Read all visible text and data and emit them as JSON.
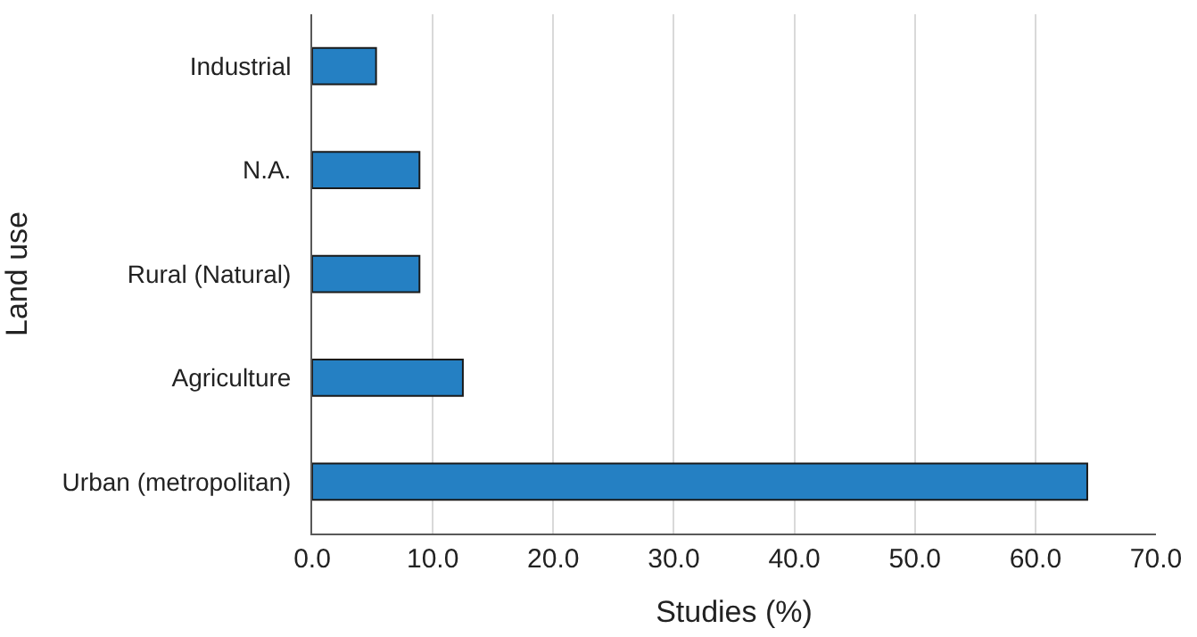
{
  "chart_data": {
    "type": "bar",
    "orientation": "horizontal",
    "xlabel": "Studies (%)",
    "ylabel": "Land use",
    "categories": [
      "Industrial",
      "N.A.",
      "Rural (Natural)",
      "Agriculture",
      "Urban (metropolitan)"
    ],
    "values": [
      5.3,
      8.9,
      8.9,
      12.5,
      64.3
    ],
    "color": "#2580c3",
    "xlim": [
      0,
      70
    ],
    "xticks": [
      {
        "value": 0,
        "label": "0.0"
      },
      {
        "value": 10,
        "label": "10.0"
      },
      {
        "value": 20,
        "label": "20.0"
      },
      {
        "value": 30,
        "label": "30.0"
      },
      {
        "value": 40,
        "label": "40.0"
      },
      {
        "value": 50,
        "label": "50.0"
      },
      {
        "value": 60,
        "label": "60.0"
      },
      {
        "value": 70,
        "label": "70.0"
      }
    ],
    "grid": "x",
    "legend": false
  }
}
